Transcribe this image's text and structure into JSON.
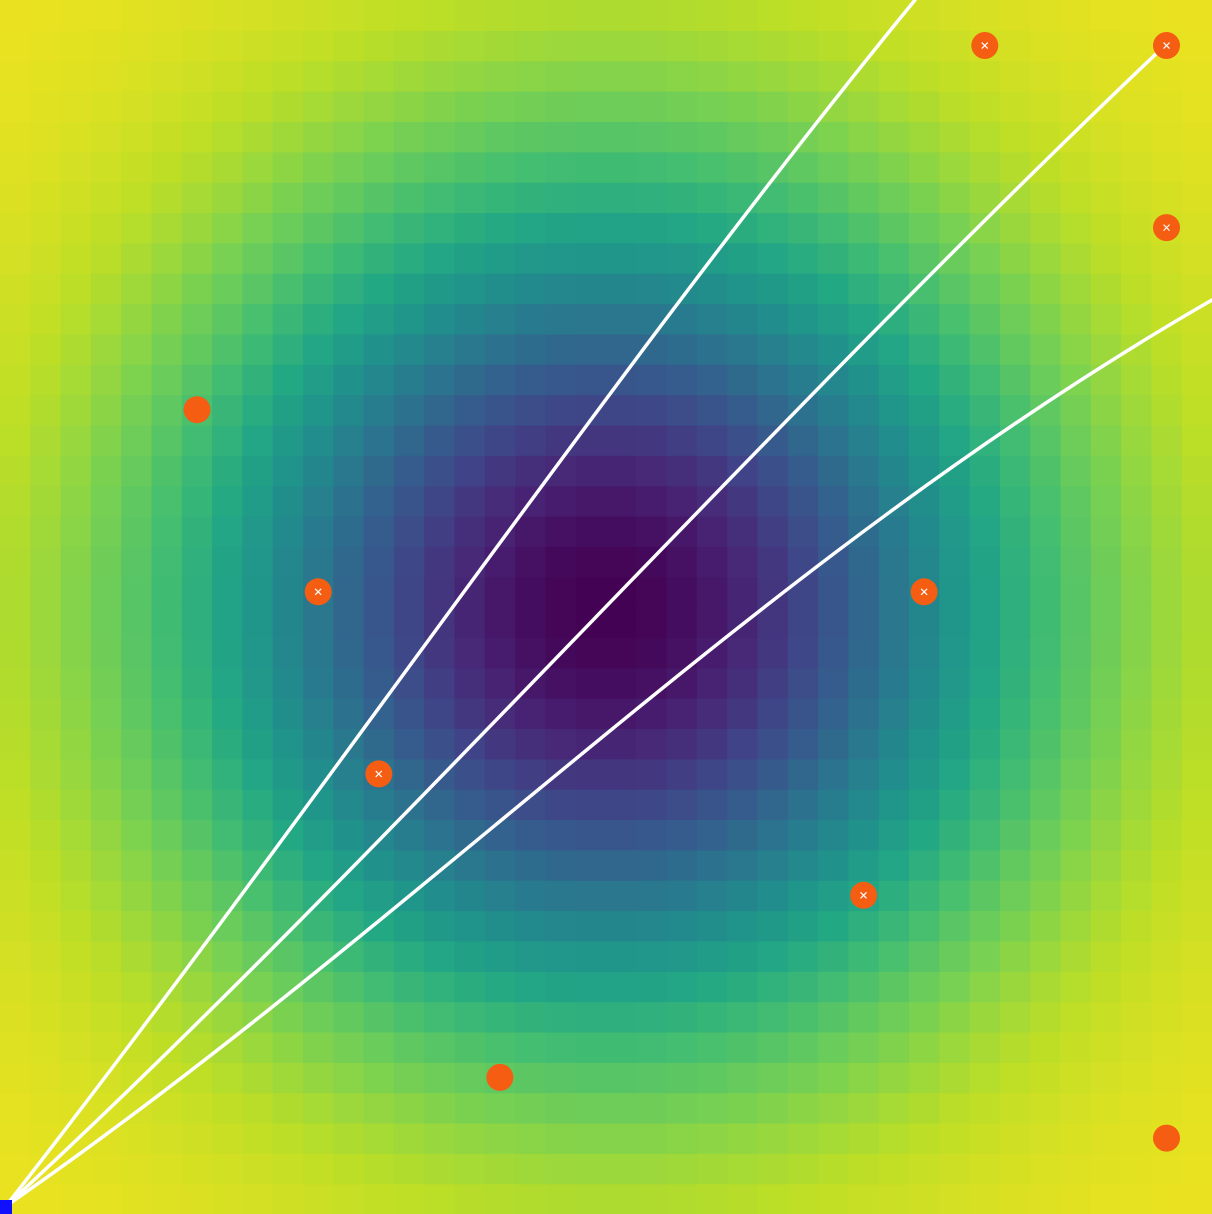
{
  "scene": {
    "description_free": true,
    "grid": {
      "cols": 40,
      "rows": 40
    },
    "field": {
      "center_cell": [
        20,
        20
      ],
      "sigma_cells": 9.5,
      "colormap": "viridis"
    },
    "rays": {
      "color": "#ffffff",
      "origin_cell": [
        0,
        0
      ],
      "count": 3,
      "bend_toward_center": true
    },
    "player": {
      "color": "#1010ff",
      "cell": [
        0,
        0
      ]
    },
    "targets": {
      "color": "#f45d12",
      "marked_color": "#ffffff",
      "items": [
        {
          "cell": [
            32,
            38
          ],
          "marked": true
        },
        {
          "cell": [
            38,
            38
          ],
          "marked": true
        },
        {
          "cell": [
            38,
            32
          ],
          "marked": true
        },
        {
          "cell": [
            6,
            26
          ],
          "marked": false
        },
        {
          "cell": [
            10,
            20
          ],
          "marked": true
        },
        {
          "cell": [
            30,
            20
          ],
          "marked": true
        },
        {
          "cell": [
            12,
            14
          ],
          "marked": true
        },
        {
          "cell": [
            28,
            10
          ],
          "marked": true
        },
        {
          "cell": [
            16,
            4
          ],
          "marked": false
        },
        {
          "cell": [
            38,
            2
          ],
          "marked": false
        }
      ]
    }
  }
}
